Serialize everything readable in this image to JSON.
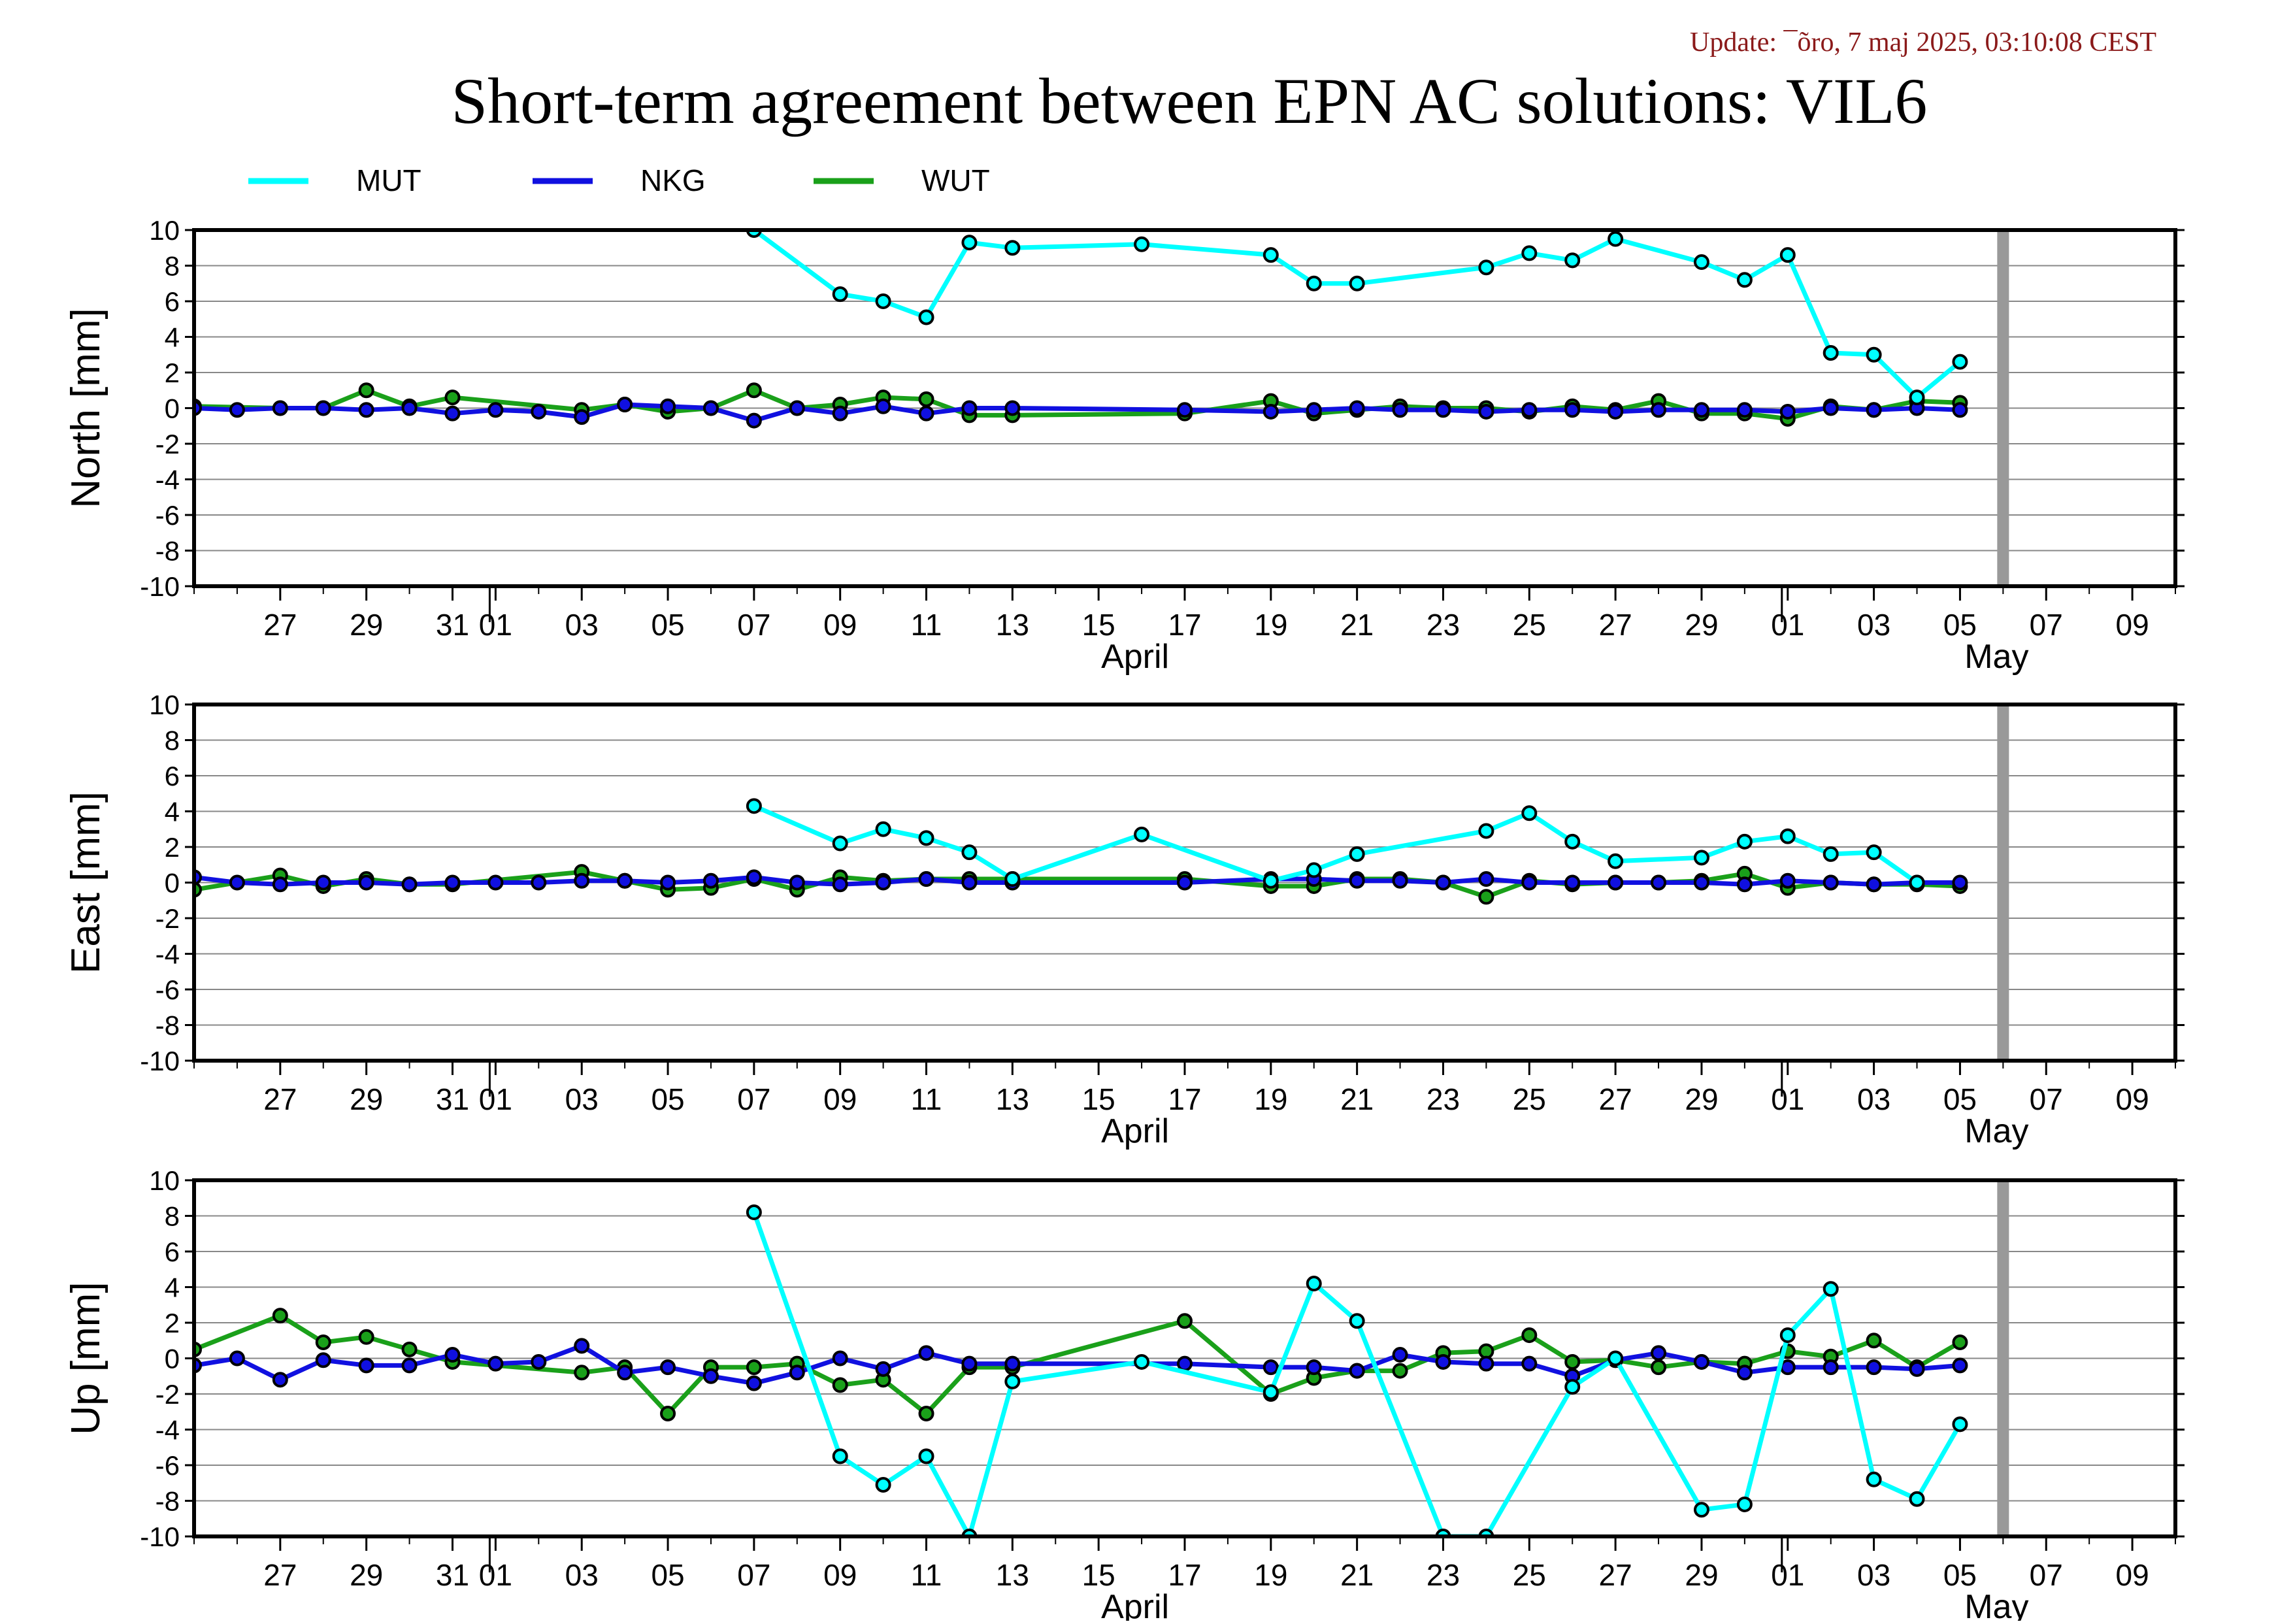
{
  "update_text": "Update: ¯õro, 7 maj 2025, 03:10:08 CEST",
  "colors": {
    "MUT": "#00ffff",
    "NKG": "#1010e0",
    "WUT": "#1aa01a",
    "update": "#8b1a1a",
    "cutoff": "#999999"
  },
  "chart_data": {
    "type": "line",
    "title": "Short-term agreement between EPN AC solutions: VIL6",
    "legend_placement": "top-left",
    "x_range": [
      "2025-03-25",
      "2025-05-10"
    ],
    "y_range": [
      -10,
      10
    ],
    "grid": true,
    "cutoff_date": "2025-05-06",
    "x_tick_labels": [
      "27",
      "29",
      "31",
      "01",
      "03",
      "05",
      "07",
      "09",
      "11",
      "13",
      "15",
      "17",
      "19",
      "21",
      "23",
      "25",
      "27",
      "29",
      "01",
      "03",
      "05",
      "07",
      "09"
    ],
    "x_tick_dates": [
      "2025-03-27",
      "2025-03-29",
      "2025-03-31",
      "2025-04-01",
      "2025-04-03",
      "2025-04-05",
      "2025-04-07",
      "2025-04-09",
      "2025-04-11",
      "2025-04-13",
      "2025-04-15",
      "2025-04-17",
      "2025-04-19",
      "2025-04-21",
      "2025-04-23",
      "2025-04-25",
      "2025-04-27",
      "2025-04-29",
      "2025-05-01",
      "2025-05-03",
      "2025-05-05",
      "2025-05-07",
      "2025-05-09"
    ],
    "month_labels": [
      {
        "label": "April",
        "date": "2025-04-16"
      },
      {
        "label": "May",
        "date": "2025-05-06"
      }
    ],
    "y_tick_labels": [
      "10",
      "8",
      "6",
      "4",
      "2",
      "0",
      "-2",
      "-4",
      "-6",
      "-8",
      "-10"
    ],
    "panels": [
      {
        "ylabel": "North [mm]",
        "series": [
          {
            "name": "MUT",
            "x": [
              "2025-04-07",
              "2025-04-09",
              "2025-04-10",
              "2025-04-11",
              "2025-04-12",
              "2025-04-13",
              "2025-04-16",
              "2025-04-19",
              "2025-04-20",
              "2025-04-21",
              "2025-04-24",
              "2025-04-25",
              "2025-04-26",
              "2025-04-27",
              "2025-04-29",
              "2025-04-30",
              "2025-05-01",
              "2025-05-02",
              "2025-05-03",
              "2025-05-04",
              "2025-05-05"
            ],
            "y": [
              10.0,
              6.4,
              6.0,
              5.1,
              9.3,
              9.0,
              9.2,
              8.6,
              7.0,
              7.0,
              7.9,
              8.7,
              8.3,
              9.5,
              8.2,
              7.2,
              8.6,
              3.1,
              3.0,
              0.6,
              2.6
            ]
          },
          {
            "name": "NKG",
            "x": [
              "2025-03-25",
              "2025-03-26",
              "2025-03-27",
              "2025-03-28",
              "2025-03-29",
              "2025-03-30",
              "2025-03-31",
              "2025-04-01",
              "2025-04-02",
              "2025-04-03",
              "2025-04-04",
              "2025-04-05",
              "2025-04-06",
              "2025-04-07",
              "2025-04-08",
              "2025-04-09",
              "2025-04-10",
              "2025-04-11",
              "2025-04-12",
              "2025-04-13",
              "2025-04-17",
              "2025-04-19",
              "2025-04-20",
              "2025-04-21",
              "2025-04-22",
              "2025-04-23",
              "2025-04-24",
              "2025-04-25",
              "2025-04-26",
              "2025-04-27",
              "2025-04-28",
              "2025-04-29",
              "2025-04-30",
              "2025-05-01",
              "2025-05-02",
              "2025-05-03",
              "2025-05-04",
              "2025-05-05"
            ],
            "y": [
              0.0,
              -0.1,
              0.0,
              0.0,
              -0.1,
              0.0,
              -0.3,
              -0.1,
              -0.2,
              -0.5,
              0.2,
              0.1,
              0.0,
              -0.7,
              0.0,
              -0.3,
              0.1,
              -0.3,
              0.0,
              0.0,
              -0.1,
              -0.2,
              -0.1,
              0.0,
              -0.1,
              -0.1,
              -0.2,
              -0.1,
              -0.1,
              -0.2,
              -0.1,
              -0.1,
              -0.1,
              -0.2,
              0.0,
              -0.1,
              0.0,
              -0.1
            ]
          },
          {
            "name": "WUT",
            "x": [
              "2025-03-25",
              "2025-03-27",
              "2025-03-28",
              "2025-03-29",
              "2025-03-30",
              "2025-03-31",
              "2025-04-03",
              "2025-04-04",
              "2025-04-05",
              "2025-04-06",
              "2025-04-07",
              "2025-04-08",
              "2025-04-09",
              "2025-04-10",
              "2025-04-11",
              "2025-04-12",
              "2025-04-13",
              "2025-04-17",
              "2025-04-19",
              "2025-04-20",
              "2025-04-21",
              "2025-04-22",
              "2025-04-23",
              "2025-04-24",
              "2025-04-25",
              "2025-04-26",
              "2025-04-27",
              "2025-04-28",
              "2025-04-29",
              "2025-04-30",
              "2025-05-01",
              "2025-05-02",
              "2025-05-03",
              "2025-05-04",
              "2025-05-05"
            ],
            "y": [
              0.1,
              0.0,
              0.0,
              1.0,
              0.1,
              0.6,
              -0.1,
              0.2,
              -0.2,
              0.0,
              1.0,
              0.0,
              0.2,
              0.6,
              0.5,
              -0.4,
              -0.4,
              -0.3,
              0.4,
              -0.3,
              -0.1,
              0.1,
              0.0,
              0.0,
              -0.2,
              0.1,
              -0.1,
              0.4,
              -0.3,
              -0.3,
              -0.6,
              0.1,
              -0.1,
              0.4,
              0.3
            ]
          }
        ]
      },
      {
        "ylabel": "East [mm]",
        "series": [
          {
            "name": "MUT",
            "x": [
              "2025-04-07",
              "2025-04-09",
              "2025-04-10",
              "2025-04-11",
              "2025-04-12",
              "2025-04-13",
              "2025-04-16",
              "2025-04-19",
              "2025-04-20",
              "2025-04-21",
              "2025-04-24",
              "2025-04-25",
              "2025-04-26",
              "2025-04-27",
              "2025-04-29",
              "2025-04-30",
              "2025-05-01",
              "2025-05-02",
              "2025-05-03",
              "2025-05-04"
            ],
            "y": [
              4.3,
              2.2,
              3.0,
              2.5,
              1.7,
              0.2,
              2.7,
              0.1,
              0.7,
              1.6,
              2.9,
              3.9,
              2.3,
              1.2,
              1.4,
              2.3,
              2.6,
              1.6,
              1.7,
              0.0
            ]
          },
          {
            "name": "NKG",
            "x": [
              "2025-03-25",
              "2025-03-26",
              "2025-03-27",
              "2025-03-28",
              "2025-03-29",
              "2025-03-30",
              "2025-03-31",
              "2025-04-01",
              "2025-04-02",
              "2025-04-03",
              "2025-04-04",
              "2025-04-05",
              "2025-04-06",
              "2025-04-07",
              "2025-04-08",
              "2025-04-09",
              "2025-04-10",
              "2025-04-11",
              "2025-04-12",
              "2025-04-13",
              "2025-04-17",
              "2025-04-19",
              "2025-04-20",
              "2025-04-21",
              "2025-04-22",
              "2025-04-23",
              "2025-04-24",
              "2025-04-25",
              "2025-04-26",
              "2025-04-27",
              "2025-04-28",
              "2025-04-29",
              "2025-04-30",
              "2025-05-01",
              "2025-05-02",
              "2025-05-03",
              "2025-05-04",
              "2025-05-05"
            ],
            "y": [
              0.3,
              0.0,
              -0.1,
              0.0,
              0.0,
              -0.1,
              0.0,
              0.0,
              0.0,
              0.1,
              0.1,
              0.0,
              0.1,
              0.3,
              0.0,
              -0.1,
              0.0,
              0.2,
              0.0,
              0.0,
              0.0,
              0.2,
              0.2,
              0.1,
              0.1,
              0.0,
              0.2,
              0.0,
              0.0,
              0.0,
              0.0,
              0.0,
              -0.1,
              0.1,
              0.0,
              -0.1,
              0.0,
              0.0
            ]
          },
          {
            "name": "WUT",
            "x": [
              "2025-03-25",
              "2025-03-27",
              "2025-03-28",
              "2025-03-29",
              "2025-03-30",
              "2025-03-31",
              "2025-04-03",
              "2025-04-04",
              "2025-04-05",
              "2025-04-06",
              "2025-04-07",
              "2025-04-08",
              "2025-04-09",
              "2025-04-10",
              "2025-04-11",
              "2025-04-12",
              "2025-04-13",
              "2025-04-17",
              "2025-04-19",
              "2025-04-20",
              "2025-04-21",
              "2025-04-22",
              "2025-04-23",
              "2025-04-24",
              "2025-04-25",
              "2025-04-26",
              "2025-04-27",
              "2025-04-28",
              "2025-04-29",
              "2025-04-30",
              "2025-05-01",
              "2025-05-02",
              "2025-05-03",
              "2025-05-04",
              "2025-05-05"
            ],
            "y": [
              -0.4,
              0.4,
              -0.2,
              0.2,
              -0.1,
              -0.1,
              0.6,
              0.1,
              -0.4,
              -0.3,
              0.2,
              -0.4,
              0.3,
              0.1,
              0.2,
              0.2,
              0.2,
              0.2,
              -0.2,
              -0.2,
              0.2,
              0.2,
              0.0,
              -0.8,
              0.1,
              -0.1,
              0.0,
              0.0,
              0.1,
              0.5,
              -0.3,
              0.0,
              -0.1,
              -0.1,
              -0.2
            ]
          }
        ]
      },
      {
        "ylabel": "Up [mm]",
        "series": [
          {
            "name": "MUT",
            "x": [
              "2025-04-07",
              "2025-04-09",
              "2025-04-10",
              "2025-04-11",
              "2025-04-12",
              "2025-04-13",
              "2025-04-16",
              "2025-04-19",
              "2025-04-20",
              "2025-04-21",
              "2025-04-23",
              "2025-04-24",
              "2025-04-26",
              "2025-04-27",
              "2025-04-29",
              "2025-04-30",
              "2025-05-01",
              "2025-05-02",
              "2025-05-03",
              "2025-05-04",
              "2025-05-05"
            ],
            "y": [
              8.2,
              -5.5,
              -7.1,
              -5.5,
              -10.0,
              -1.3,
              -0.2,
              -1.9,
              4.2,
              2.1,
              -10.0,
              -10.0,
              -1.6,
              0.0,
              -8.5,
              -8.2,
              1.3,
              3.9,
              -6.8,
              -7.9,
              -3.7
            ]
          },
          {
            "name": "NKG",
            "x": [
              "2025-03-25",
              "2025-03-26",
              "2025-03-27",
              "2025-03-28",
              "2025-03-29",
              "2025-03-30",
              "2025-03-31",
              "2025-04-01",
              "2025-04-02",
              "2025-04-03",
              "2025-04-04",
              "2025-04-05",
              "2025-04-06",
              "2025-04-07",
              "2025-04-08",
              "2025-04-09",
              "2025-04-10",
              "2025-04-11",
              "2025-04-12",
              "2025-04-13",
              "2025-04-17",
              "2025-04-19",
              "2025-04-20",
              "2025-04-21",
              "2025-04-22",
              "2025-04-23",
              "2025-04-24",
              "2025-04-25",
              "2025-04-26",
              "2025-04-27",
              "2025-04-28",
              "2025-04-29",
              "2025-04-30",
              "2025-05-01",
              "2025-05-02",
              "2025-05-03",
              "2025-05-04",
              "2025-05-05"
            ],
            "y": [
              -0.4,
              0.0,
              -1.2,
              -0.1,
              -0.4,
              -0.4,
              0.2,
              -0.3,
              -0.2,
              0.7,
              -0.8,
              -0.5,
              -1.0,
              -1.4,
              -0.8,
              0.0,
              -0.6,
              0.3,
              -0.3,
              -0.3,
              -0.3,
              -0.5,
              -0.5,
              -0.7,
              0.2,
              -0.2,
              -0.3,
              -0.3,
              -1.0,
              -0.1,
              0.3,
              -0.2,
              -0.8,
              -0.5,
              -0.5,
              -0.5,
              -0.6,
              -0.4
            ]
          },
          {
            "name": "WUT",
            "x": [
              "2025-03-25",
              "2025-03-27",
              "2025-03-28",
              "2025-03-29",
              "2025-03-30",
              "2025-03-31",
              "2025-04-03",
              "2025-04-04",
              "2025-04-05",
              "2025-04-06",
              "2025-04-07",
              "2025-04-08",
              "2025-04-09",
              "2025-04-10",
              "2025-04-11",
              "2025-04-12",
              "2025-04-13",
              "2025-04-17",
              "2025-04-19",
              "2025-04-20",
              "2025-04-21",
              "2025-04-22",
              "2025-04-23",
              "2025-04-24",
              "2025-04-25",
              "2025-04-26",
              "2025-04-27",
              "2025-04-28",
              "2025-04-29",
              "2025-04-30",
              "2025-05-01",
              "2025-05-02",
              "2025-05-03",
              "2025-05-04",
              "2025-05-05"
            ],
            "y": [
              0.5,
              2.4,
              0.9,
              1.2,
              0.5,
              -0.2,
              -0.8,
              -0.5,
              -3.1,
              -0.5,
              -0.5,
              -0.3,
              -1.5,
              -1.2,
              -3.1,
              -0.5,
              -0.5,
              2.1,
              -2.0,
              -1.1,
              -0.7,
              -0.7,
              0.3,
              0.4,
              1.3,
              -0.2,
              -0.1,
              -0.5,
              -0.2,
              -0.3,
              0.4,
              0.1,
              1.0,
              -0.5,
              0.9
            ]
          }
        ]
      }
    ]
  }
}
